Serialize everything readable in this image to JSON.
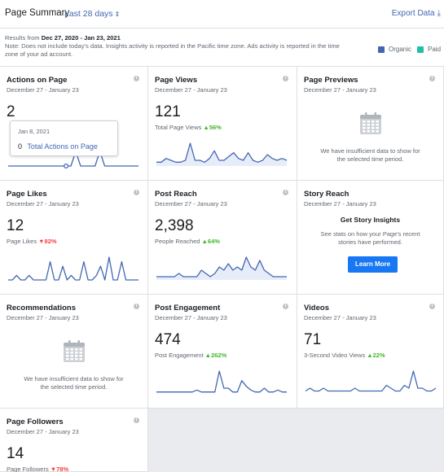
{
  "header": {
    "title": "Page Summary",
    "range": "Last 28 days",
    "export": "Export Data"
  },
  "notice": {
    "results_prefix": "Results from",
    "results_range": "Dec 27, 2020 - Jan 23, 2021",
    "note": "Note: Does not include today's data. Insights activity is reported in the Pacific time zone. Ads activity is reported in the time zone of your ad account."
  },
  "legend": [
    {
      "label": "Organic",
      "color": "#4267b2"
    },
    {
      "label": "Paid",
      "color": "#20c0a8"
    }
  ],
  "colors": {
    "accent": "#4267b2",
    "up": "#42b72a",
    "down": "#fa3e3e",
    "button": "#1877f2",
    "line": "#4267b2"
  },
  "cards": {
    "actions": {
      "title": "Actions on Page",
      "date": "December 27 - January 23",
      "value": "2",
      "tooltip": {
        "date": "Jan 8, 2021",
        "count": "0",
        "label": "Total Actions on Page"
      },
      "series": [
        0,
        0,
        0,
        0,
        0,
        0,
        0,
        0,
        0,
        0,
        0,
        0,
        0,
        0,
        1,
        0,
        0,
        0,
        0,
        1,
        0,
        0,
        0,
        0,
        0,
        0,
        0,
        0
      ]
    },
    "views": {
      "title": "Page Views",
      "date": "December 27 - January 23",
      "value": "121",
      "sub": "Total Page Views",
      "change": "56%",
      "trend": "up",
      "series": [
        2,
        2,
        4,
        3,
        2,
        2,
        3,
        12,
        3,
        3,
        2,
        4,
        8,
        3,
        3,
        5,
        7,
        4,
        3,
        7,
        3,
        2,
        3,
        6,
        4,
        3,
        4,
        3
      ]
    },
    "previews": {
      "title": "Page Previews",
      "date": "December 27 - January 23",
      "msg": "We have insufficient data to show for the selected time period."
    },
    "likes": {
      "title": "Page Likes",
      "date": "December 27 - January 23",
      "value": "12",
      "sub": "Page Likes",
      "change": "82%",
      "trend": "down",
      "series": [
        0,
        0,
        1,
        0,
        0,
        1,
        0,
        0,
        0,
        0,
        4,
        0,
        0,
        3,
        0,
        1,
        0,
        0,
        4,
        0,
        0,
        1,
        3,
        0,
        5,
        0,
        0,
        4,
        0,
        0,
        0,
        0
      ]
    },
    "reach": {
      "title": "Post Reach",
      "date": "December 27 - January 23",
      "value": "2,398",
      "sub": "People Reached",
      "change": "64%",
      "trend": "up",
      "series": [
        1,
        1,
        1,
        1,
        1,
        2,
        1,
        1,
        1,
        1,
        3,
        2,
        1,
        2,
        4,
        3,
        5,
        3,
        4,
        3,
        7,
        4,
        3,
        6,
        3,
        2,
        1,
        1,
        1,
        1
      ]
    },
    "story": {
      "title": "Story Reach",
      "date": "December 27 - January 23",
      "heading": "Get Story Insights",
      "text": "See stats on how your Page's recent stories have performed.",
      "button": "Learn More"
    },
    "recommendations": {
      "title": "Recommendations",
      "date": "December 27 - January 23",
      "msg": "We have insufficient data to show for the selected time period."
    },
    "engagement": {
      "title": "Post Engagement",
      "date": "December 27 - January 23",
      "value": "474",
      "sub": "Post Engagement",
      "change": "262%",
      "trend": "up",
      "series": [
        1,
        1,
        1,
        1,
        1,
        1,
        1,
        1,
        1,
        2,
        1,
        1,
        1,
        1,
        12,
        3,
        3,
        1,
        1,
        7,
        4,
        2,
        1,
        1,
        3,
        1,
        1,
        2,
        1,
        1
      ]
    },
    "videos": {
      "title": "Videos",
      "date": "December 27 - January 23",
      "value": "71",
      "sub": "3-Second Video Views",
      "change": "22%",
      "trend": "up",
      "series": [
        1,
        2,
        1,
        1,
        2,
        1,
        1,
        1,
        1,
        1,
        1,
        2,
        1,
        1,
        1,
        1,
        1,
        1,
        3,
        2,
        1,
        1,
        3,
        2,
        8,
        2,
        2,
        1,
        1,
        2
      ]
    },
    "followers": {
      "title": "Page Followers",
      "date": "December 27 - January 23",
      "value": "14",
      "sub": "Page Followers",
      "change": "78%",
      "trend": "down"
    }
  }
}
